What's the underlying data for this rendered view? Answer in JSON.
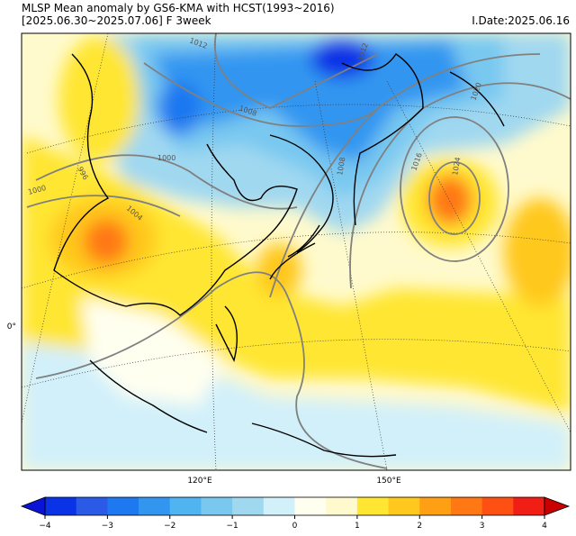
{
  "header": {
    "title": "MLSP Mean anomaly by GS6-KMA with HCST(1993~2016)",
    "period": "[2025.06.30~2025.07.06] F 3week",
    "issue_date": "I.Date:2025.06.16"
  },
  "map": {
    "lat_labels": [
      "0°"
    ],
    "lon_labels": [
      "120°E",
      "150°E"
    ],
    "contour_labels": [
      "1012",
      "1008",
      "1000",
      "1000",
      "996",
      "1012",
      "1008",
      "1016",
      "1020",
      "1024",
      "1004"
    ]
  },
  "colorbar": {
    "lim": [
      -4,
      4
    ],
    "ticks": [
      {
        "value": -4,
        "label": "−4"
      },
      {
        "value": -3,
        "label": "−3"
      },
      {
        "value": -2,
        "label": "−2"
      },
      {
        "value": -1,
        "label": "−1"
      },
      0,
      1,
      2,
      3,
      4
    ],
    "colors": [
      "#0a32e6",
      "#2a5ae6",
      "#1e78f0",
      "#3296f0",
      "#50b4f0",
      "#78c8f0",
      "#a0d8f0",
      "#d2f0fa",
      "#fffff0",
      "#fffacd",
      "#ffe632",
      "#ffc81e",
      "#ffa014",
      "#ff7814",
      "#ff5014",
      "#f01e14"
    ],
    "under_color": "#0a14d6",
    "over_color": "#c80000"
  }
}
